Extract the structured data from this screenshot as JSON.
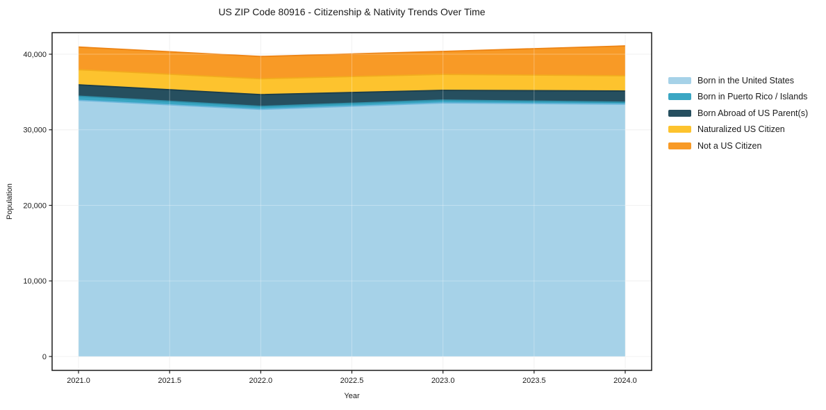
{
  "title": "US ZIP Code 80916 - Citizenship & Nativity Trends Over Time",
  "axes": {
    "x": {
      "label": "Year",
      "ticks": [
        2021.0,
        2021.5,
        2022.0,
        2022.5,
        2023.0,
        2023.5,
        2024.0
      ],
      "tick_labels": [
        "2021.0",
        "2021.5",
        "2022.0",
        "2022.5",
        "2023.0",
        "2023.5",
        "2024.0"
      ]
    },
    "y": {
      "label": "Population",
      "ticks": [
        0,
        10000,
        20000,
        30000,
        40000
      ],
      "tick_labels": [
        "0",
        "10,000",
        "20,000",
        "30,000",
        "40,000"
      ]
    }
  },
  "chart_data": {
    "type": "area",
    "stacked": true,
    "title": "US ZIP Code 80916 - Citizenship & Nativity Trends Over Time",
    "xlabel": "Year",
    "ylabel": "Population",
    "x": [
      2021,
      2022,
      2023,
      2024
    ],
    "series": [
      {
        "name": "Born in the United States",
        "color": "#A6D2E8",
        "edge_color": "#6FB8DC",
        "values": [
          33900,
          32700,
          33550,
          33380
        ]
      },
      {
        "name": "Born in Puerto Rico / Islands",
        "color": "#3AA6C3",
        "edge_color": "#2E8FA9",
        "values": [
          550,
          400,
          380,
          270
        ]
      },
      {
        "name": "Born Abroad of US Parent(s)",
        "color": "#264F5F",
        "edge_color": "#1B3D4A",
        "values": [
          1500,
          1550,
          1290,
          1480
        ]
      },
      {
        "name": "Naturalized US Citizen",
        "color": "#FDC32E",
        "edge_color": "#F2AC1E",
        "values": [
          2000,
          2100,
          2110,
          2020
        ]
      },
      {
        "name": "Not a US Citizen",
        "color": "#F89A26",
        "edge_color": "#ED8313",
        "values": [
          3000,
          2950,
          3040,
          3950
        ]
      }
    ],
    "xlim": [
      2020.855,
      2024.145
    ],
    "ylim": [
      -1839,
      42851
    ],
    "grid": true,
    "legend_position": "right-outside"
  },
  "layout_colors": {
    "background": "#FFFFFF",
    "grid": "#ECECEC",
    "grid_over_areas": "rgba(255,255,255,0.3)",
    "frame": "#1A1A1A",
    "text": "#1A1A1A"
  }
}
